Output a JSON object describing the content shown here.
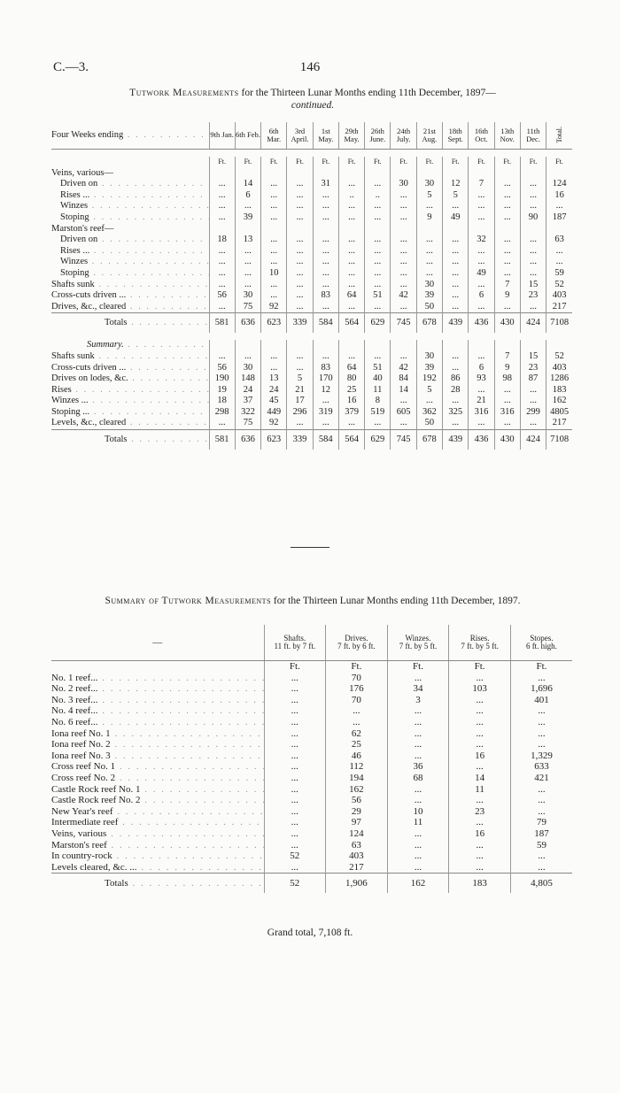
{
  "header": {
    "ref": "C.—3.",
    "page": "146"
  },
  "table1": {
    "title_caps": "Tutwork Measurements",
    "title_rest": "for the Thirteen Lunar Months ending 11th December, 1897—",
    "subtitle": "continued.",
    "stub_header": "Four Weeks ending",
    "columns": [
      "9th Jan.",
      "6th Feb.",
      "6th Mar.",
      "3rd April.",
      "1st May.",
      "29th May.",
      "26th June.",
      "24th July.",
      "21st Aug.",
      "18th Sept.",
      "16th Oct.",
      "13th Nov.",
      "11th Dec.",
      "Total."
    ],
    "units": [
      "Ft.",
      "Ft.",
      "Ft.",
      "Ft.",
      "Ft.",
      "Ft.",
      "Ft.",
      "Ft.",
      "Ft.",
      "Ft.",
      "Ft.",
      "Ft.",
      "Ft.",
      "Ft."
    ],
    "sections": [
      {
        "groups": [
          {
            "heading": "Veins, various—",
            "rows": [
              {
                "label": "Driven on",
                "cells": [
                  "...",
                  "14",
                  "...",
                  "...",
                  "31",
                  "...",
                  "...",
                  "30",
                  "30",
                  "12",
                  "7",
                  "...",
                  "...",
                  "124"
                ]
              },
              {
                "label": "Rises ...",
                "cells": [
                  "...",
                  "6",
                  "...",
                  "...",
                  "...",
                  "..",
                  "..",
                  "...",
                  "5",
                  "5",
                  "...",
                  "...",
                  "...",
                  "16"
                ]
              },
              {
                "label": "Winzes",
                "cells": [
                  "...",
                  "...",
                  "...",
                  "...",
                  "...",
                  "...",
                  "...",
                  "...",
                  "...",
                  "...",
                  "...",
                  "...",
                  "...",
                  "..."
                ]
              },
              {
                "label": "Stoping",
                "cells": [
                  "...",
                  "39",
                  "...",
                  "...",
                  "...",
                  "...",
                  "...",
                  "...",
                  "9",
                  "49",
                  "...",
                  "...",
                  "90",
                  "187"
                ]
              }
            ]
          },
          {
            "heading": "Marston's reef—",
            "rows": [
              {
                "label": "Driven on",
                "cells": [
                  "18",
                  "13",
                  "...",
                  "...",
                  "...",
                  "...",
                  "...",
                  "...",
                  "...",
                  "...",
                  "32",
                  "...",
                  "...",
                  "63"
                ]
              },
              {
                "label": "Rises ...",
                "cells": [
                  "...",
                  "...",
                  "...",
                  "...",
                  "...",
                  "...",
                  "...",
                  "...",
                  "...",
                  "...",
                  "...",
                  "...",
                  "...",
                  "..."
                ]
              },
              {
                "label": "Winzes",
                "cells": [
                  "...",
                  "...",
                  "...",
                  "...",
                  "...",
                  "...",
                  "...",
                  "...",
                  "...",
                  "...",
                  "...",
                  "...",
                  "...",
                  "..."
                ]
              },
              {
                "label": "Stoping",
                "cells": [
                  "...",
                  "...",
                  "10",
                  "...",
                  "...",
                  "...",
                  "...",
                  "...",
                  "...",
                  "...",
                  "49",
                  "...",
                  "...",
                  "59"
                ]
              }
            ]
          },
          {
            "rows": [
              {
                "label": "Shafts sunk",
                "cells": [
                  "...",
                  "...",
                  "...",
                  "...",
                  "...",
                  "...",
                  "...",
                  "...",
                  "30",
                  "...",
                  "...",
                  "7",
                  "15",
                  "52"
                ]
              },
              {
                "label": "Cross-cuts driven ...",
                "cells": [
                  "56",
                  "30",
                  "...",
                  "...",
                  "83",
                  "64",
                  "51",
                  "42",
                  "39",
                  "...",
                  "6",
                  "9",
                  "23",
                  "403"
                ]
              },
              {
                "label": "Drives, &c., cleared",
                "cells": [
                  "...",
                  "75",
                  "92",
                  "...",
                  "...",
                  "...",
                  "...",
                  "...",
                  "50",
                  "...",
                  "...",
                  "...",
                  "...",
                  "217"
                ]
              }
            ]
          }
        ],
        "total_label": "Totals",
        "totals": [
          "581",
          "636",
          "623",
          "339",
          "584",
          "564",
          "629",
          "745",
          "678",
          "439",
          "436",
          "430",
          "424",
          "7108"
        ]
      },
      {
        "heading": "Summary.",
        "groups": [
          {
            "rows": [
              {
                "label": "Shafts sunk",
                "cells": [
                  "...",
                  "...",
                  "...",
                  "...",
                  "...",
                  "...",
                  "...",
                  "...",
                  "30",
                  "...",
                  "...",
                  "7",
                  "15",
                  "52"
                ]
              },
              {
                "label": "Cross-cuts driven ...",
                "cells": [
                  "56",
                  "30",
                  "...",
                  "...",
                  "83",
                  "64",
                  "51",
                  "42",
                  "39",
                  "...",
                  "6",
                  "9",
                  "23",
                  "403"
                ]
              },
              {
                "label": "Drives on lodes, &c.",
                "cells": [
                  "190",
                  "148",
                  "13",
                  "5",
                  "170",
                  "80",
                  "40",
                  "84",
                  "192",
                  "86",
                  "93",
                  "98",
                  "87",
                  "1286"
                ]
              },
              {
                "label": "Rises",
                "cells": [
                  "19",
                  "24",
                  "24",
                  "21",
                  "12",
                  "25",
                  "11",
                  "14",
                  "5",
                  "28",
                  "...",
                  "...",
                  "...",
                  "183"
                ]
              },
              {
                "label": "Winzes ...",
                "cells": [
                  "18",
                  "37",
                  "45",
                  "17",
                  "...",
                  "16",
                  "8",
                  "...",
                  "...",
                  "...",
                  "21",
                  "...",
                  "...",
                  "162"
                ]
              },
              {
                "label": "Stoping ...",
                "cells": [
                  "298",
                  "322",
                  "449",
                  "296",
                  "319",
                  "379",
                  "519",
                  "605",
                  "362",
                  "325",
                  "316",
                  "316",
                  "299",
                  "4805"
                ]
              },
              {
                "label": "Levels, &c., cleared",
                "cells": [
                  "...",
                  "75",
                  "92",
                  "...",
                  "...",
                  "...",
                  "...",
                  "...",
                  "50",
                  "...",
                  "...",
                  "...",
                  "...",
                  "217"
                ]
              }
            ]
          }
        ],
        "total_label": "Totals",
        "totals": [
          "581",
          "636",
          "623",
          "339",
          "584",
          "564",
          "629",
          "745",
          "678",
          "439",
          "436",
          "430",
          "424",
          "7108"
        ]
      }
    ]
  },
  "table2": {
    "title_caps": "Summary of Tutwork Measurements",
    "title_rest": "for the Thirteen Lunar Months ending 11th December, 1897.",
    "stub": "—",
    "columns": [
      {
        "name": "Shafts.",
        "size": "11 ft. by 7 ft."
      },
      {
        "name": "Drives.",
        "size": "7 ft. by 6 ft."
      },
      {
        "name": "Winzes.",
        "size": "7 ft. by 5 ft."
      },
      {
        "name": "Rises.",
        "size": "7 ft. by 5 ft."
      },
      {
        "name": "Stopes.",
        "size": "6 ft. high."
      }
    ],
    "units": [
      "Ft.",
      "Ft.",
      "Ft.",
      "Ft.",
      "Ft."
    ],
    "rows": [
      {
        "label": "No. 1 reef...",
        "cells": [
          "...",
          "70",
          "...",
          "...",
          "..."
        ]
      },
      {
        "label": "No. 2 reef...",
        "cells": [
          "...",
          "176",
          "34",
          "103",
          "1,696"
        ]
      },
      {
        "label": "No. 3 reef...",
        "cells": [
          "...",
          "70",
          "3",
          "...",
          "401"
        ]
      },
      {
        "label": "No. 4 reef...",
        "cells": [
          "...",
          "...",
          "...",
          "...",
          "..."
        ]
      },
      {
        "label": "No. 6 reef...",
        "cells": [
          "...",
          "...",
          "...",
          "...",
          "..."
        ]
      },
      {
        "label": "Iona reef No. 1",
        "cells": [
          "...",
          "62",
          "...",
          "...",
          "..."
        ]
      },
      {
        "label": "Iona reef No. 2",
        "cells": [
          "...",
          "25",
          "...",
          "...",
          "..."
        ]
      },
      {
        "label": "Iona reef No. 3",
        "cells": [
          "...",
          "46",
          "...",
          "16",
          "1,329"
        ]
      },
      {
        "label": "Cross reef No. 1",
        "cells": [
          "...",
          "112",
          "36",
          "...",
          "633"
        ]
      },
      {
        "label": "Cross reef No. 2",
        "cells": [
          "...",
          "194",
          "68",
          "14",
          "421"
        ]
      },
      {
        "label": "Castle Rock reef No. 1",
        "cells": [
          "...",
          "162",
          "...",
          "11",
          "..."
        ]
      },
      {
        "label": "Castle Rock reef No. 2",
        "cells": [
          "...",
          "56",
          "...",
          "...",
          "..."
        ]
      },
      {
        "label": "New Year's reef",
        "cells": [
          "...",
          "29",
          "10",
          "23",
          "..."
        ]
      },
      {
        "label": "Intermediate reef",
        "cells": [
          "...",
          "97",
          "11",
          "...",
          "79"
        ]
      },
      {
        "label": "Veins, various",
        "cells": [
          "...",
          "124",
          "...",
          "16",
          "187"
        ]
      },
      {
        "label": "Marston's reef",
        "cells": [
          "...",
          "63",
          "...",
          "...",
          "59"
        ]
      },
      {
        "label": "In country-rock",
        "cells": [
          "52",
          "403",
          "...",
          "...",
          "..."
        ]
      },
      {
        "label": "Levels cleared, &c. ...",
        "cells": [
          "...",
          "217",
          "...",
          "...",
          "..."
        ]
      }
    ],
    "total_label": "Totals",
    "totals": [
      "52",
      "1,906",
      "162",
      "183",
      "4,805"
    ],
    "grand_total": "Grand total, 7,108 ft."
  }
}
